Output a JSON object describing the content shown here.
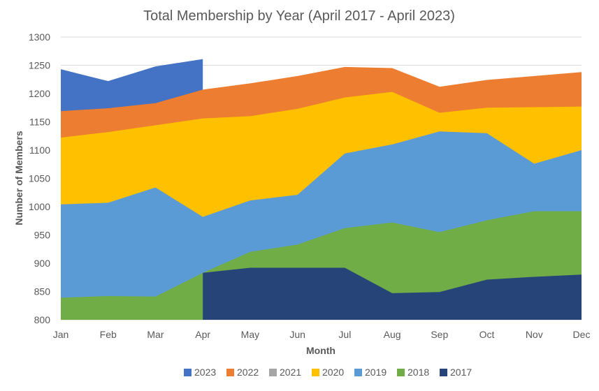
{
  "chart_data": {
    "type": "area",
    "title": "Total Membership by Year (April 2017 - April 2023)",
    "xlabel": "Month",
    "ylabel": "Number of Members",
    "ylim": [
      800,
      1300
    ],
    "yticks": [
      800,
      850,
      900,
      950,
      1000,
      1050,
      1100,
      1150,
      1200,
      1250,
      1300
    ],
    "grid": true,
    "legend_position": "bottom",
    "categories": [
      "Jan",
      "Feb",
      "Mar",
      "Apr",
      "May",
      "Jun",
      "Jul",
      "Aug",
      "Sep",
      "Oct",
      "Nov",
      "Dec"
    ],
    "series": [
      {
        "name": "2017",
        "color": "#264478",
        "values": [
          null,
          null,
          null,
          883,
          892,
          892,
          892,
          847,
          849,
          871,
          876,
          880
        ]
      },
      {
        "name": "2018",
        "color": "#70AD47",
        "values": [
          839,
          842,
          841,
          883,
          920,
          933,
          962,
          972,
          955,
          976,
          992,
          992
        ]
      },
      {
        "name": "2019",
        "color": "#5B9BD5",
        "values": [
          1004,
          1007,
          1034,
          982,
          1011,
          1021,
          1094,
          1110,
          1133,
          1130,
          1076,
          1100
        ]
      },
      {
        "name": "2020",
        "color": "#FFC000",
        "values": [
          1122,
          1132,
          1144,
          1156,
          1160,
          1173,
          1193,
          1203,
          1166,
          1175,
          1176,
          1177
        ]
      },
      {
        "name": "2021",
        "color": "#A5A5A5",
        "values": [
          null,
          null,
          null,
          null,
          null,
          null,
          null,
          null,
          null,
          null,
          null,
          null
        ]
      },
      {
        "name": "2022",
        "color": "#ED7D31",
        "values": [
          1169,
          1174,
          1183,
          1207,
          1218,
          1231,
          1247,
          1245,
          1212,
          1224,
          1231,
          1238
        ]
      },
      {
        "name": "2023",
        "color": "#4472C4",
        "values": [
          1243,
          1222,
          1248,
          1261,
          null,
          null,
          null,
          null,
          null,
          null,
          null,
          null
        ]
      }
    ],
    "legend_order": [
      "2023",
      "2022",
      "2021",
      "2020",
      "2019",
      "2018",
      "2017"
    ]
  }
}
